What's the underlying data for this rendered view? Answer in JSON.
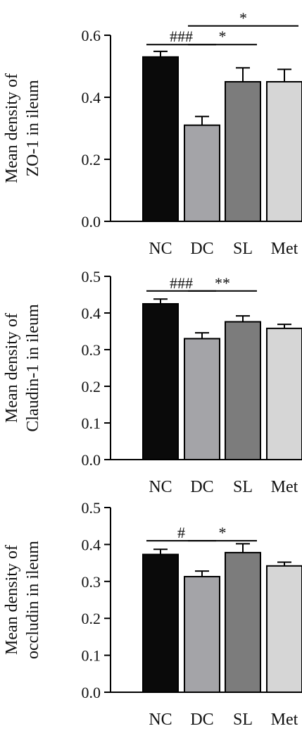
{
  "chart_data": [
    {
      "type": "bar",
      "ylabel": [
        "Mean density of",
        "ZO-1 in ileum"
      ],
      "categories": [
        "NC",
        "DC",
        "SL",
        "Met"
      ],
      "values": [
        0.53,
        0.31,
        0.45,
        0.45
      ],
      "errors": [
        0.018,
        0.028,
        0.045,
        0.04
      ],
      "colors": [
        "#0a0a0a",
        "#a4a4a8",
        "#7c7c7c",
        "#d6d6d6"
      ],
      "ylim": [
        0,
        0.6
      ],
      "yticks": [
        "0.0",
        "0.2",
        "0.4",
        "0.6"
      ],
      "yticks_values": [
        0,
        0.2,
        0.4,
        0.6
      ],
      "significance": [
        {
          "from": 0,
          "to": 1,
          "label": "###",
          "y": 0.57
        },
        {
          "from": 1,
          "to": 2,
          "label": "*",
          "y": 0.57
        },
        {
          "from": 1,
          "to": 3,
          "label": "*",
          "y": 0.63
        }
      ]
    },
    {
      "type": "bar",
      "ylabel": [
        "Mean density of",
        "Claudin-1 in ileum"
      ],
      "categories": [
        "NC",
        "DC",
        "SL",
        "Met"
      ],
      "values": [
        0.425,
        0.33,
        0.376,
        0.358
      ],
      "errors": [
        0.013,
        0.016,
        0.016,
        0.011
      ],
      "colors": [
        "#0a0a0a",
        "#a4a4a8",
        "#7c7c7c",
        "#d6d6d6"
      ],
      "ylim": [
        0,
        0.5
      ],
      "yticks": [
        "0.0",
        "0.1",
        "0.2",
        "0.3",
        "0.4",
        "0.5"
      ],
      "yticks_values": [
        0,
        0.1,
        0.2,
        0.3,
        0.4,
        0.5
      ],
      "significance": [
        {
          "from": 0,
          "to": 1,
          "label": "###",
          "y": 0.46
        },
        {
          "from": 1,
          "to": 2,
          "label": "**",
          "y": 0.46
        }
      ]
    },
    {
      "type": "bar",
      "ylabel": [
        "Mean density of",
        "occludin in ileum"
      ],
      "categories": [
        "NC",
        "DC",
        "SL",
        "Met"
      ],
      "values": [
        0.373,
        0.313,
        0.378,
        0.342
      ],
      "errors": [
        0.014,
        0.015,
        0.024,
        0.01
      ],
      "colors": [
        "#0a0a0a",
        "#a4a4a8",
        "#7c7c7c",
        "#d6d6d6"
      ],
      "ylim": [
        0,
        0.5
      ],
      "yticks": [
        "0.0",
        "0.1",
        "0.2",
        "0.3",
        "0.4",
        "0.5"
      ],
      "yticks_values": [
        0,
        0.1,
        0.2,
        0.3,
        0.4,
        0.5
      ],
      "significance": [
        {
          "from": 0,
          "to": 1,
          "label": "#",
          "y": 0.41
        },
        {
          "from": 1,
          "to": 2,
          "label": "*",
          "y": 0.41
        }
      ]
    }
  ]
}
